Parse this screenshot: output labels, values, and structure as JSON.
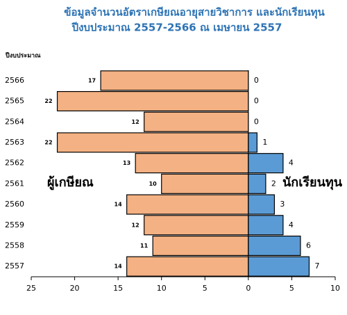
{
  "chart_data": {
    "type": "bar",
    "orientation": "horizontal",
    "title": [
      "ข้อมูลจำนวนอัตราเกษียณอายุสายวิชาการ และนักเรียนทุน",
      "ปีงบประมาณ 2557-2566  ณ   เมษายน  2557"
    ],
    "y_label": "ปีงบประมาณ",
    "categories": [
      "2566",
      "2565",
      "2564",
      "2563",
      "2562",
      "2561",
      "2560",
      "2559",
      "2558",
      "2557"
    ],
    "series": [
      {
        "name": "ผู้เกษียณ",
        "color": "#f4b183",
        "label_color": "#e8843c",
        "values": [
          -17,
          -22,
          -12,
          -22,
          -13,
          -10,
          -14,
          -12,
          -11,
          -14
        ],
        "value_labels": [
          "17",
          "22",
          "12",
          "22",
          "13",
          "10",
          "14",
          "12",
          "11",
          "14"
        ]
      },
      {
        "name": "นักเรียนทุน",
        "color": "#5b9bd5",
        "label_color": "#2e74b5",
        "values": [
          0,
          0,
          0,
          1,
          4,
          2,
          3,
          4,
          6,
          7
        ]
      }
    ],
    "xlim": [
      -25,
      10
    ],
    "xticks": [
      {
        "value": -25,
        "label": "25"
      },
      {
        "value": -20,
        "label": "20"
      },
      {
        "value": -15,
        "label": "15"
      },
      {
        "value": -10,
        "label": "10"
      },
      {
        "value": -5,
        "label": "5"
      },
      0,
      5,
      10
    ]
  }
}
